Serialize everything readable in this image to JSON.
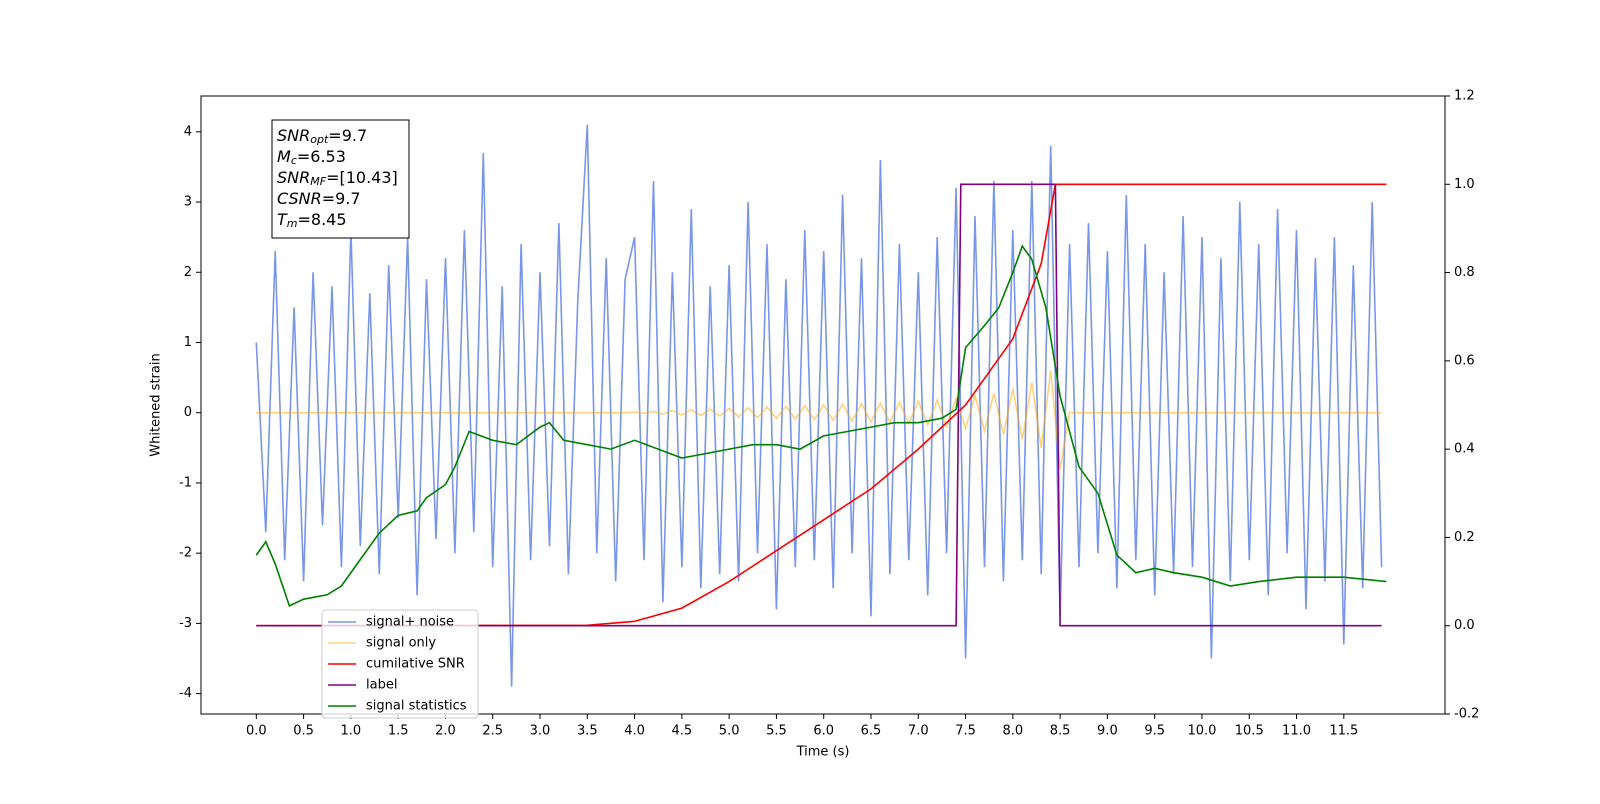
{
  "chart_data": {
    "type": "line",
    "xlabel": "Time (s)",
    "ylabel": "Whitened strain",
    "xlim": [
      -0.585,
      12.57
    ],
    "ylim": [
      -4.29,
      4.51
    ],
    "y2lim": [
      -0.2,
      1.2
    ],
    "xticks": [
      {
        "value": 0,
        "label": "0.0"
      },
      0.5,
      {
        "value": 1,
        "label": "1.0"
      },
      1.5,
      {
        "value": 2,
        "label": "2.0"
      },
      2.5,
      {
        "value": 3,
        "label": "3.0"
      },
      3.5,
      {
        "value": 4,
        "label": "4.0"
      },
      4.5,
      {
        "value": 5,
        "label": "5.0"
      },
      5.5,
      {
        "value": 6,
        "label": "6.0"
      },
      6.5,
      {
        "value": 7,
        "label": "7.0"
      },
      7.5,
      {
        "value": 8,
        "label": "8.0"
      },
      8.5,
      {
        "value": 9,
        "label": "9.0"
      },
      9.5,
      {
        "value": 10,
        "label": "10.0"
      },
      10.5,
      {
        "value": 11,
        "label": "11.0"
      },
      11.5
    ],
    "yticks": [
      -4,
      -3,
      -2,
      -1,
      0,
      1,
      2,
      3,
      4
    ],
    "y2ticks": [
      -0.2,
      {
        "value": 0,
        "label": "0.0"
      },
      0.2,
      0.4,
      0.6,
      0.8,
      {
        "value": 1,
        "label": "1.0"
      },
      1.2
    ],
    "legend": "lower left",
    "annotation": [
      {
        "name": "SNR",
        "sub": "opt",
        "text": "=9.7"
      },
      {
        "name": "M",
        "sub": "c",
        "text": "=6.53"
      },
      {
        "name": "SNR",
        "sub": "MF",
        "text": "=[10.43]"
      },
      {
        "name": "CSNR",
        "sub": null,
        "text": "=9.7"
      },
      {
        "name": "T",
        "sub": "m",
        "text": "=8.45"
      }
    ],
    "x": [
      0,
      0.1,
      0.2,
      0.3,
      0.4,
      0.5,
      0.6,
      0.7,
      0.8,
      0.9,
      1,
      1.1,
      1.2,
      1.3,
      1.4,
      1.5,
      1.6,
      1.7,
      1.8,
      1.9,
      2,
      2.1,
      2.2,
      2.3,
      2.4,
      2.5,
      2.6,
      2.7,
      2.8,
      2.9,
      3,
      3.1,
      3.2,
      3.3,
      3.4,
      3.5,
      3.6,
      3.7,
      3.8,
      3.9,
      4,
      4.1,
      4.2,
      4.3,
      4.4,
      4.5,
      4.6,
      4.7,
      4.8,
      4.9,
      5,
      5.1,
      5.2,
      5.3,
      5.4,
      5.5,
      5.6,
      5.7,
      5.8,
      5.9,
      6,
      6.1,
      6.2,
      6.3,
      6.4,
      6.5,
      6.6,
      6.7,
      6.8,
      6.9,
      7,
      7.1,
      7.2,
      7.3,
      7.4,
      7.5,
      7.6,
      7.7,
      7.8,
      7.9,
      8,
      8.1,
      8.2,
      8.3,
      8.4,
      8.5,
      8.6,
      8.7,
      8.8,
      8.9,
      9,
      9.1,
      9.2,
      9.3,
      9.4,
      9.5,
      9.6,
      9.7,
      9.8,
      9.9,
      10,
      10.1,
      10.2,
      10.3,
      10.4,
      10.5,
      10.6,
      10.7,
      10.8,
      10.9,
      11,
      11.1,
      11.2,
      11.3,
      11.4,
      11.5,
      11.6,
      11.7,
      11.8,
      11.9
    ],
    "series": [
      {
        "name": "signal+ noise",
        "color": "#4169e1",
        "opacity": 0.7,
        "values": [
          1.0,
          -1.7,
          2.3,
          -2.1,
          1.5,
          -2.4,
          2.0,
          -1.6,
          1.8,
          -2.2,
          2.6,
          -1.9,
          1.7,
          -2.3,
          2.1,
          -1.5,
          2.5,
          -2.6,
          1.9,
          -1.8,
          2.2,
          -2.0,
          2.6,
          -1.7,
          3.7,
          -2.2,
          1.8,
          -3.9,
          2.4,
          -2.1,
          2.0,
          -1.9,
          2.7,
          -2.3,
          1.6,
          4.1,
          -2.0,
          2.2,
          -2.4,
          1.9,
          2.5,
          -2.1,
          3.3,
          -2.7,
          2.0,
          -2.2,
          2.9,
          -2.5,
          1.8,
          -2.3,
          2.1,
          -2.4,
          3.0,
          -2.0,
          2.4,
          -2.8,
          1.9,
          -2.2,
          2.6,
          -2.1,
          2.3,
          -2.5,
          3.1,
          -2.0,
          2.2,
          -2.9,
          3.6,
          -2.3,
          2.4,
          -2.1,
          2.0,
          -2.6,
          2.5,
          -2.0,
          3.2,
          -3.5,
          2.8,
          -2.2,
          3.3,
          -2.4,
          2.6,
          -2.1,
          3.3,
          -2.3,
          3.8,
          -2.9,
          2.4,
          -2.2,
          2.7,
          -2.0,
          2.3,
          -2.5,
          3.1,
          -2.1,
          2.4,
          -2.6,
          2.0,
          -2.3,
          2.8,
          -2.2,
          2.5,
          -3.5,
          2.2,
          -2.4,
          3.0,
          -2.1,
          2.4,
          -2.6,
          2.9,
          -2.0,
          2.6,
          -2.8,
          2.2,
          -2.4,
          2.5,
          -3.3,
          2.1,
          -2.5,
          3.0,
          -2.2
        ]
      },
      {
        "name": "signal only",
        "color": "#ffa500",
        "opacity": 0.5,
        "values": [
          0,
          0,
          0,
          0,
          0,
          0,
          0,
          0,
          0,
          0,
          0,
          0,
          0,
          0,
          0,
          0,
          0,
          0,
          0,
          0,
          0,
          0,
          0,
          0,
          0,
          0,
          0,
          0,
          0,
          0,
          0,
          0,
          0,
          0,
          0,
          0,
          0,
          0,
          0,
          0,
          0.01,
          -0.01,
          0.02,
          -0.02,
          0.03,
          -0.03,
          0.04,
          -0.04,
          0.05,
          -0.05,
          0.06,
          -0.06,
          0.07,
          -0.07,
          0.08,
          -0.08,
          0.09,
          -0.09,
          0.1,
          -0.1,
          0.11,
          -0.11,
          0.12,
          -0.12,
          0.13,
          -0.13,
          0.14,
          -0.14,
          0.15,
          -0.15,
          0.16,
          -0.17,
          0.18,
          -0.19,
          0.2,
          -0.22,
          0.24,
          -0.26,
          0.28,
          -0.31,
          0.34,
          -0.38,
          0.43,
          -0.5,
          0.6,
          -0.8,
          0,
          0,
          0,
          0,
          0,
          0,
          0,
          0,
          0,
          0,
          0,
          0,
          0,
          0,
          0,
          0,
          0,
          0,
          0,
          0,
          0,
          0,
          0,
          0,
          0,
          0,
          0,
          0,
          0,
          0,
          0,
          0,
          0,
          0
        ]
      },
      {
        "name": "cumilative SNR",
        "color": "#ff0000",
        "axis": "y2",
        "x": [
          0,
          3.5,
          4,
          4.5,
          5,
          5.5,
          6,
          6.5,
          7,
          7.5,
          8,
          8.3,
          8.45,
          11.95
        ],
        "values": [
          0,
          0.001,
          0.01,
          0.04,
          0.1,
          0.17,
          0.24,
          0.31,
          0.4,
          0.5,
          0.65,
          0.82,
          1.0,
          1.0
        ]
      },
      {
        "name": "label",
        "color": "#800080",
        "axis": "y2",
        "x": [
          0,
          7.4,
          7.45,
          8.45,
          8.5,
          11.9
        ],
        "values": [
          0,
          0,
          1,
          1,
          0,
          0
        ]
      },
      {
        "name": "signal statistics",
        "color": "#008000",
        "axis": "y2",
        "x": [
          0,
          0.1,
          0.2,
          0.35,
          0.5,
          0.75,
          0.9,
          1.1,
          1.3,
          1.5,
          1.7,
          1.8,
          2.0,
          2.1,
          2.25,
          2.5,
          2.75,
          3.0,
          3.1,
          3.25,
          3.5,
          3.75,
          4.0,
          4.25,
          4.5,
          4.75,
          5.0,
          5.25,
          5.5,
          5.75,
          6.0,
          6.25,
          6.5,
          6.75,
          7.0,
          7.25,
          7.4,
          7.5,
          7.7,
          7.85,
          8.0,
          8.1,
          8.2,
          8.35,
          8.5,
          8.7,
          8.9,
          9.1,
          9.3,
          9.5,
          9.7,
          10.0,
          10.3,
          10.6,
          11.0,
          11.5,
          11.95
        ],
        "values": [
          0.16,
          0.19,
          0.14,
          0.045,
          0.06,
          0.07,
          0.09,
          0.15,
          0.21,
          0.25,
          0.26,
          0.29,
          0.32,
          0.36,
          0.44,
          0.42,
          0.41,
          0.45,
          0.46,
          0.42,
          0.41,
          0.4,
          0.42,
          0.4,
          0.38,
          0.39,
          0.4,
          0.41,
          0.41,
          0.4,
          0.43,
          0.44,
          0.45,
          0.46,
          0.46,
          0.47,
          0.49,
          0.63,
          0.68,
          0.72,
          0.8,
          0.86,
          0.83,
          0.72,
          0.52,
          0.36,
          0.3,
          0.16,
          0.12,
          0.13,
          0.12,
          0.11,
          0.09,
          0.1,
          0.11,
          0.11,
          0.1
        ]
      }
    ]
  }
}
